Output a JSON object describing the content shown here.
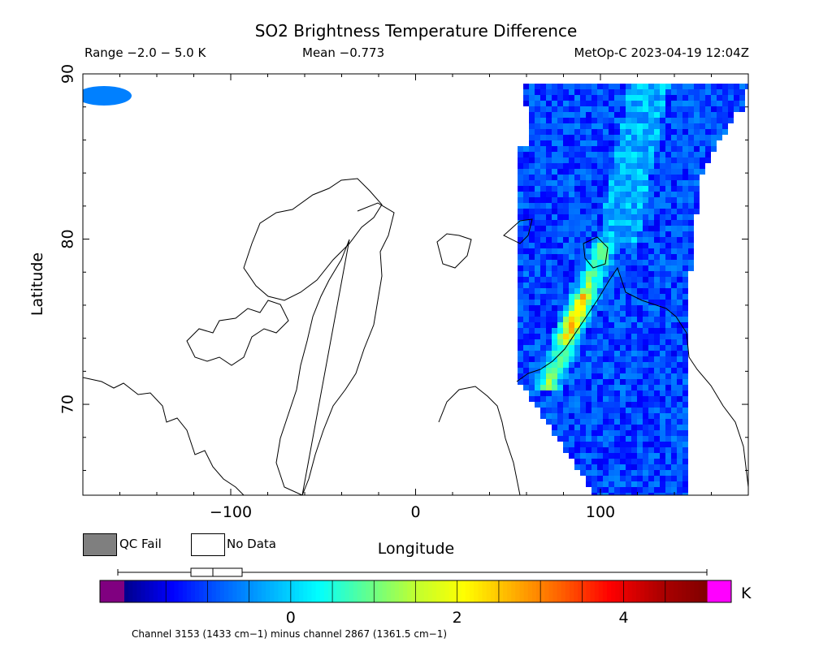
{
  "header": {
    "title": "SO2 Brightness Temperature Difference",
    "range": "Range −2.0 − 5.0 K",
    "mean": "Mean −0.773",
    "platform": "MetOp-C 2023-04-19 12:04Z"
  },
  "legend": {
    "qc_fail": "QC Fail",
    "no_data": "No Data",
    "qc_fail_color": "#7f7f7f",
    "no_data_color": "#ffffff"
  },
  "colorbar": {
    "unit": "K",
    "tick_labels": [
      "0",
      "2",
      "4"
    ],
    "tick_values": [
      0,
      2,
      4
    ],
    "min": -2.0,
    "max": 5.0,
    "under_color": "#800080",
    "over_color": "#ff00ff",
    "colors": [
      "#00008b",
      "#0000ff",
      "#0060ff",
      "#00b0ff",
      "#00ffff",
      "#60ff90",
      "#c0ff30",
      "#ffff00",
      "#ffb000",
      "#ff6000",
      "#ff0000",
      "#b00000",
      "#800000"
    ],
    "caption": "Channel 3153 (1433 cm−1) minus channel 2867 (1361.5 cm−1)"
  },
  "chart_data": {
    "type": "heatmap",
    "title": "SO2 Brightness Temperature Difference",
    "xlabel": "Longitude",
    "ylabel": "Latitude",
    "xlim": [
      -180,
      180
    ],
    "ylim": [
      64.5,
      90
    ],
    "x_ticks": [
      -100,
      0,
      100
    ],
    "y_ticks": [
      70,
      80,
      90
    ],
    "value_range": [
      -2.0,
      5.0
    ],
    "mean": -0.773,
    "units": "K",
    "features": [
      {
        "feature": "elevated SO2 plume",
        "lon_range": [
          75,
          105
        ],
        "lat_range": [
          71,
          79
        ],
        "approx_peak_K": 3.0
      }
    ]
  }
}
